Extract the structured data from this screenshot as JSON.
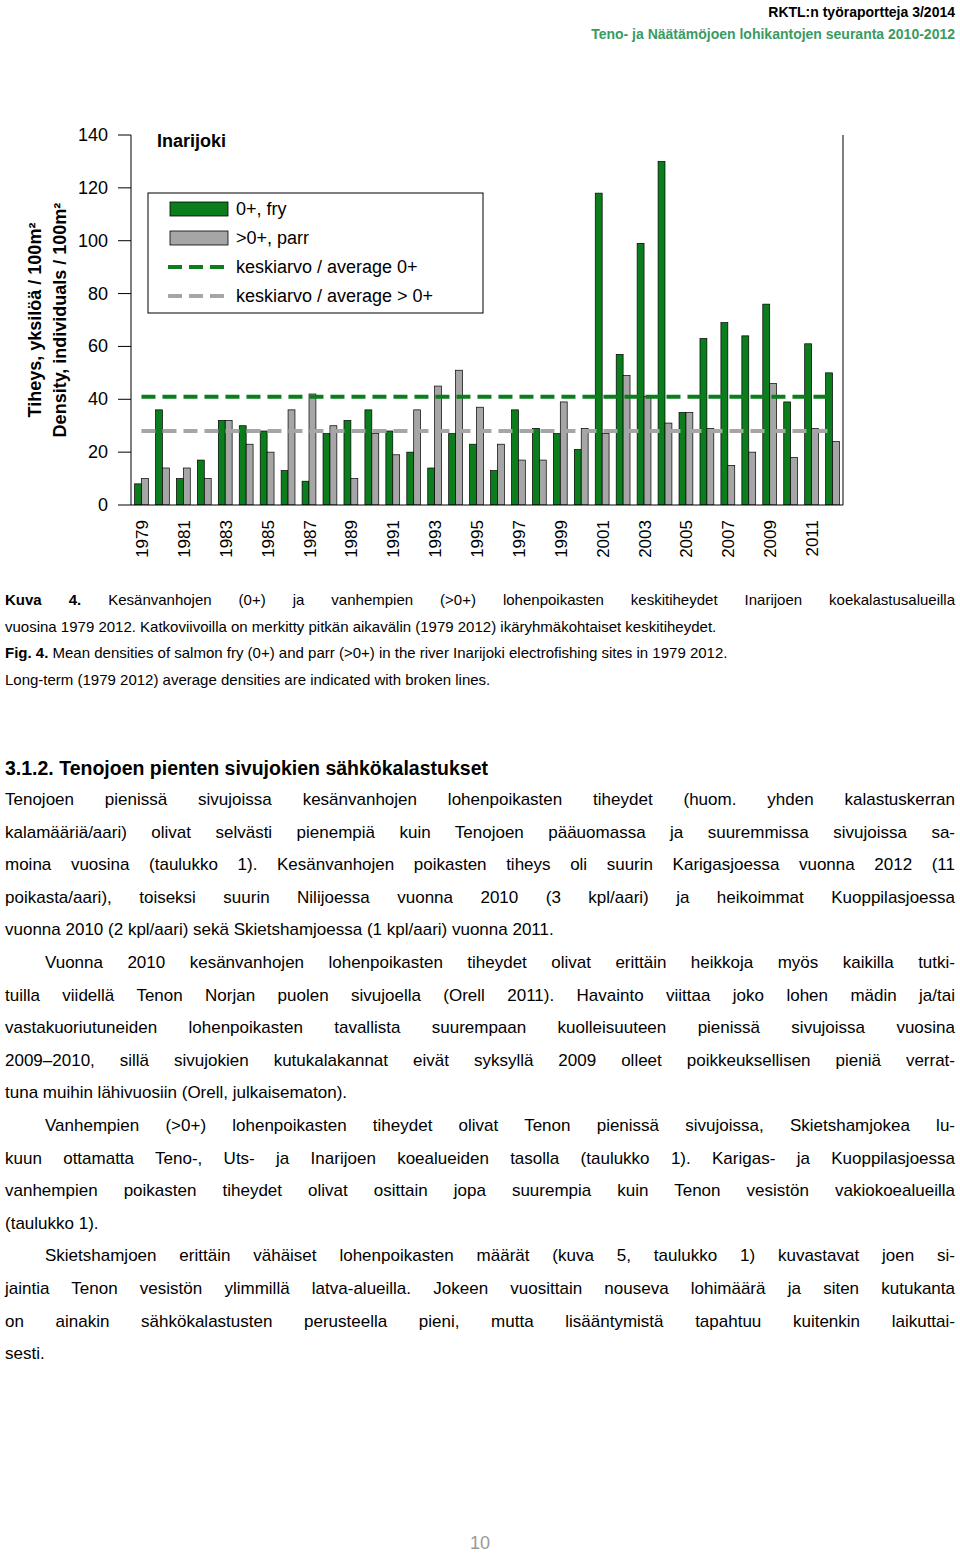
{
  "header": {
    "series_title": "RKTL:n työraportteja 3/2014",
    "subtitle": "Teno- ja Näätämöjoen lohikantojen seuranta 2010-2012"
  },
  "chart_data": {
    "type": "bar",
    "title": "Inarijoki",
    "ylabel": [
      "Tiheys, yksilöä / 100m²",
      "Density, individuals / 100m²"
    ],
    "categories": [
      "1979",
      null,
      "1981",
      null,
      "1983",
      null,
      "1985",
      null,
      "1987",
      null,
      "1989",
      null,
      "1991",
      null,
      "1993",
      null,
      "1995",
      null,
      "1997",
      null,
      "1999",
      null,
      "2001",
      null,
      "2003",
      null,
      "2005",
      null,
      "2007",
      null,
      "2009",
      null,
      "2011",
      null
    ],
    "series": [
      {
        "name": "0+, fry",
        "type": "bar",
        "color": "#0b7d1c",
        "values": [
          8,
          36,
          10,
          17,
          32,
          30,
          28,
          13,
          9,
          27,
          32,
          36,
          28,
          20,
          14,
          27,
          23,
          13,
          36,
          29,
          27,
          21,
          118,
          57,
          99,
          130,
          35,
          63,
          69,
          64,
          76,
          39,
          61,
          50
        ]
      },
      {
        "name": ">0+, parr",
        "type": "bar",
        "color": "#a6a6a6",
        "values": [
          10,
          14,
          14,
          10,
          32,
          23,
          20,
          36,
          42,
          30,
          10,
          27,
          19,
          36,
          45,
          51,
          37,
          23,
          17,
          17,
          39,
          29,
          27,
          49,
          41,
          31,
          35,
          29,
          15,
          20,
          46,
          18,
          29,
          24
        ]
      },
      {
        "name": "keskiarvo / average 0+",
        "type": "line",
        "line_style": "dashed",
        "color": "#0b7d1c",
        "values": [
          41,
          41,
          41,
          41,
          41,
          41,
          41,
          41,
          41,
          41,
          41,
          41,
          41,
          41,
          41,
          41,
          41,
          41,
          41,
          41,
          41,
          41,
          41,
          41,
          41,
          41,
          41,
          41,
          41,
          41,
          41,
          41,
          41,
          41
        ]
      },
      {
        "name": "keskiarvo / average > 0+",
        "type": "line",
        "line_style": "dashed",
        "color": "#a6a6a6",
        "values": [
          28,
          28,
          28,
          28,
          28,
          28,
          28,
          28,
          28,
          28,
          28,
          28,
          28,
          28,
          28,
          28,
          28,
          28,
          28,
          28,
          28,
          28,
          28,
          28,
          28,
          28,
          28,
          28,
          28,
          28,
          28,
          28,
          28,
          28
        ]
      }
    ],
    "ylim": [
      0,
      140
    ],
    "yticks": [
      0,
      20,
      40,
      60,
      80,
      100,
      120,
      140
    ],
    "grid": false,
    "legend": "top-left"
  },
  "caption": {
    "fi": {
      "label": "Kuva 4.",
      "lines": [
        "Kesänvanhojen (0+) ja vanhempien (>0+) lohenpoikasten keskitiheydet Inarijoen koekalastusalueilla",
        "vuosina 1979 2012. Katkoviivoilla on merkitty pitkän aikavälin (1979 2012) ikäryhmäkohtaiset keskitiheydet."
      ]
    },
    "en": {
      "label": "Fig. 4.",
      "lines": [
        "Mean densities of salmon fry (0+) and parr (>0+) in the river Inarijoki electrofishing sites in 1979 2012.",
        "Long-term (1979 2012) average densities are indicated with broken lines."
      ]
    }
  },
  "section": {
    "heading": "3.1.2. Tenojoen pienten sivujokien sähkökalastukset",
    "paragraphs": [
      [
        "Tenojoen pienissä sivujoissa kesänvanhojen lohenpoikasten tiheydet (huom. yhden kalastuskerran",
        "kalamääriä/aari) olivat selvästi pienempiä kuin Tenojoen pääuomassa ja suuremmissa sivujoissa sa-",
        "moina vuosina (taulukko 1). Kesänvanhojen poikasten tiheys oli suurin Karigasjoessa vuonna 2012 (11",
        "poikasta/aari), toiseksi suurin Nilijoessa vuonna 2010 (3 kpl/aari) ja heikoimmat Kuoppilasjoessa",
        "vuonna 2010 (2 kpl/aari) sekä Skietshamjoessa (1 kpl/aari) vuonna 2011."
      ],
      [
        "Vuonna 2010 kesänvanhojen lohenpoikasten tiheydet olivat erittäin heikkoja myös kaikilla tutki-",
        "tuilla viidellä Tenon Norjan puolen sivujoella (Orell 2011). Havainto viittaa joko lohen mädin ja/tai",
        "vastakuoriutuneiden lohenpoikasten tavallista suurempaan kuolleisuuteen pienissä sivujoissa vuosina",
        "2009–2010, sillä sivujokien kutukalakannat eivät syksyllä 2009 olleet poikkeuksellisen pieniä verrat-",
        "tuna muihin lähivuosiin (Orell, julkaisematon)."
      ],
      [
        "Vanhempien (>0+) lohenpoikasten tiheydet olivat Tenon pienissä sivujoissa, Skietshamjokea lu-",
        "kuun ottamatta Teno-, Uts- ja Inarijoen koealueiden tasolla (taulukko 1). Karigas- ja Kuoppilasjoessa",
        "vanhempien poikasten tiheydet olivat osittain jopa suurempia kuin Tenon vesistön vakiokoealueilla",
        "(taulukko 1)."
      ],
      [
        "Skietshamjoen erittäin vähäiset lohenpoikasten määrät (kuva 5, taulukko 1) kuvastavat joen si-",
        "jaintia Tenon vesistön ylimmillä latva-alueilla. Jokeen vuosittain nouseva lohimäärä ja siten kutukanta",
        "on ainakin sähkökalastusten perusteella pieni, mutta lisääntymistä tapahtuu kuitenkin laikuttai-",
        "sesti."
      ]
    ]
  },
  "page_number": "10"
}
